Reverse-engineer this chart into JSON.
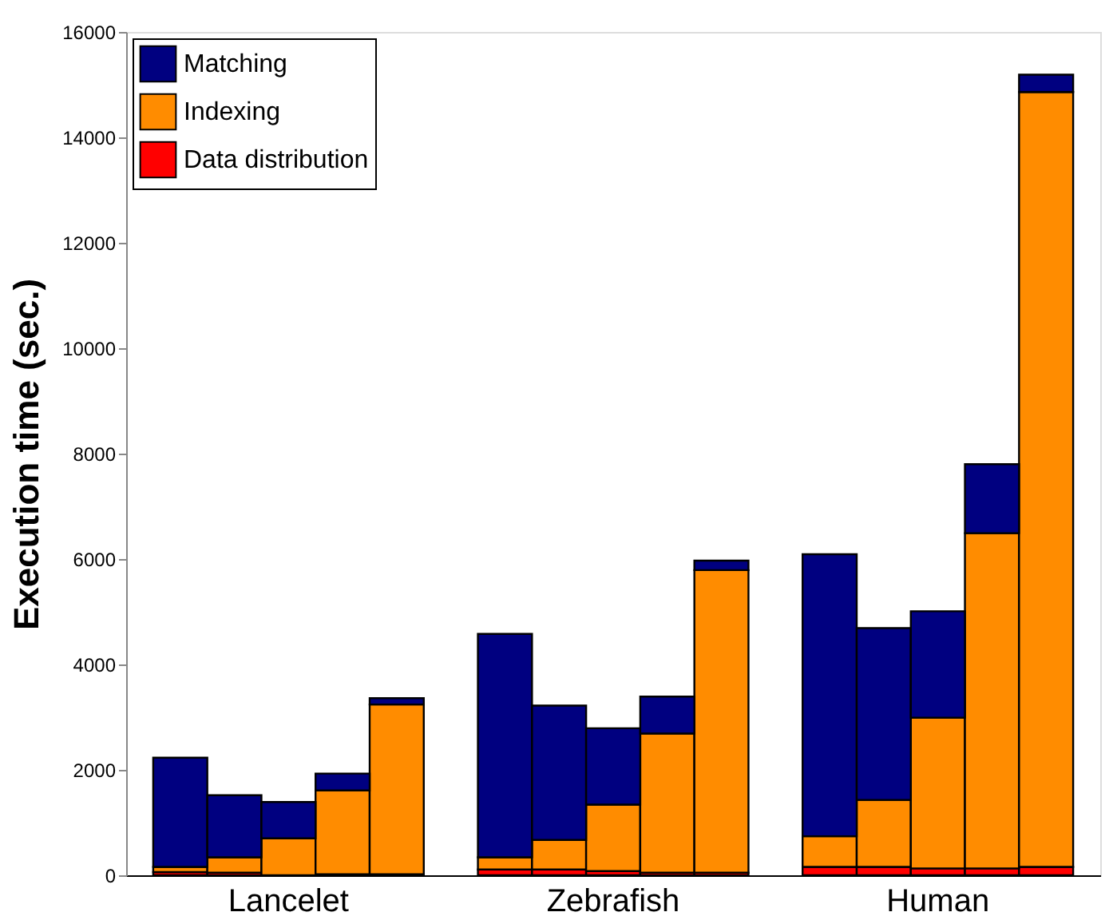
{
  "chart_data": {
    "type": "bar",
    "stacked": true,
    "ylabel": "Execution time (sec.)",
    "categories": [
      null,
      null,
      "Lancelet",
      null,
      null,
      null,
      null,
      null,
      "Zebrafish",
      null,
      null,
      null,
      null,
      null,
      "Human",
      null,
      null
    ],
    "series": [
      {
        "name": "Data distribution",
        "color": "#ff0000",
        "values": [
          60,
          50,
          null,
          20,
          20,
          null,
          110,
          110,
          80,
          50,
          50,
          null,
          160,
          160,
          130,
          130,
          160
        ]
      },
      {
        "name": "Indexing",
        "color": "#ff8c00",
        "values": [
          100,
          290,
          700,
          1590,
          3220,
          null,
          230,
          560,
          1260,
          2640,
          5740,
          null,
          580,
          1270,
          2860,
          6360,
          14700
        ]
      },
      {
        "name": "Matching",
        "color": "#000080",
        "values": [
          2070,
          1180,
          690,
          320,
          120,
          null,
          4240,
          2550,
          1450,
          700,
          180,
          null,
          5350,
          3260,
          2020,
          1310,
          330
        ]
      }
    ],
    "ylim": [
      0,
      16000
    ],
    "yticks": [
      0,
      2000,
      4000,
      6000,
      8000,
      10000,
      12000,
      14000,
      16000
    ],
    "legend": "top left",
    "grid": false
  }
}
